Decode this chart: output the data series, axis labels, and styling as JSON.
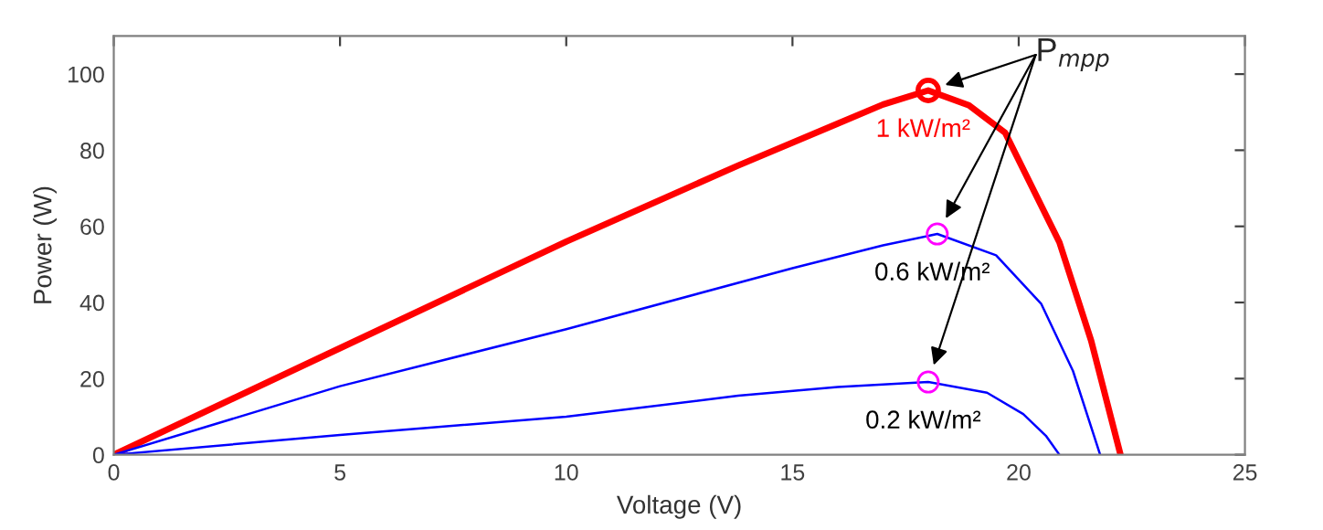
{
  "chart_data": {
    "type": "line",
    "xlabel": "Voltage (V)",
    "ylabel": "Power (W)",
    "xlim": [
      0,
      25
    ],
    "ylim": [
      0,
      110
    ],
    "xticks": [
      0,
      5,
      10,
      15,
      20,
      25
    ],
    "yticks": [
      0,
      20,
      40,
      60,
      80,
      100
    ],
    "grid": false,
    "legend": false,
    "series": [
      {
        "name": "1 kW/m²",
        "color": "#ff0000",
        "x": [
          0,
          5,
          10,
          13.8,
          16,
          17,
          18,
          18.9,
          19.7,
          20.9,
          21.6,
          22.25
        ],
        "values": [
          0,
          28,
          56,
          76,
          87,
          92,
          95.7,
          91.8,
          84.6,
          55.8,
          30,
          0
        ]
      },
      {
        "name": "0.6 kW/m²",
        "color": "#0000ff",
        "x": [
          0,
          5,
          10,
          15,
          17,
          18.2,
          19.5,
          20.5,
          21.2,
          21.8
        ],
        "values": [
          0,
          18,
          33,
          49,
          55,
          58,
          52.4,
          39.6,
          22,
          0
        ]
      },
      {
        "name": "0.2 kW/m²",
        "color": "#0000ff",
        "x": [
          0,
          5,
          10,
          13.8,
          16,
          18,
          19.3,
          20.1,
          20.6,
          20.9
        ],
        "values": [
          0,
          5.2,
          10,
          15.5,
          17.8,
          19.1,
          16.3,
          10.7,
          5,
          0
        ]
      },
      {
        "type": "scatter",
        "marker": "circle",
        "x": [
          18,
          18.2,
          18
        ],
        "values": [
          95.7,
          58,
          19.1
        ],
        "colors": [
          "#ff0000",
          "#ff00ff",
          "#ff00ff"
        ]
      }
    ],
    "annotations": [
      "P$_{mpp}$"
    ]
  }
}
